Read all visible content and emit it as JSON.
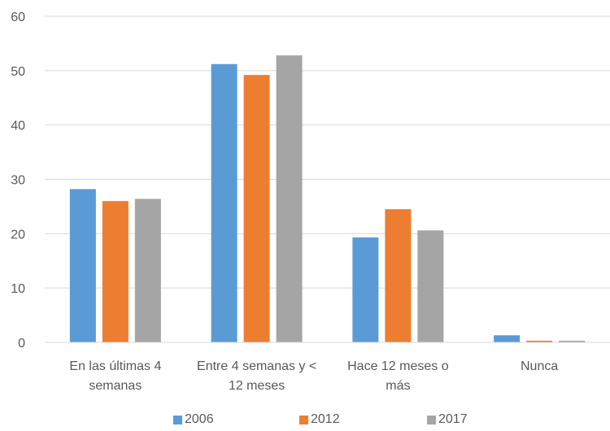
{
  "chart_data": {
    "type": "bar",
    "categories": [
      [
        "En las últimas 4",
        "semanas"
      ],
      [
        "Entre 4 semanas y <",
        "12 meses"
      ],
      [
        "Hace 12 meses o",
        "más"
      ],
      [
        "Nunca"
      ]
    ],
    "series": [
      {
        "name": "2006",
        "color": "#5B9BD5",
        "values": [
          28.2,
          51.2,
          19.3,
          1.3
        ]
      },
      {
        "name": "2012",
        "color": "#ED7D31",
        "values": [
          26.0,
          49.2,
          24.5,
          0.3
        ]
      },
      {
        "name": "2017",
        "color": "#A5A5A5",
        "values": [
          26.4,
          52.8,
          20.6,
          0.3
        ]
      }
    ],
    "title": "",
    "xlabel": "",
    "ylabel": "",
    "ylim": [
      0,
      60
    ],
    "yticks": [
      0,
      10,
      20,
      30,
      40,
      50,
      60
    ],
    "grid": true,
    "gridline_color": "#D9D9D9",
    "legend_position": "bottom"
  }
}
